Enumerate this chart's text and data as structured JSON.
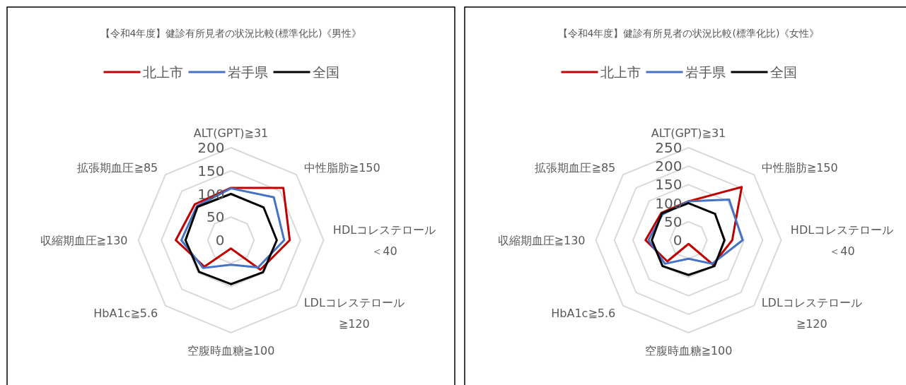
{
  "chart_data": [
    {
      "type": "radar",
      "title": "【令和4年度】健診有所見者の状況比較(標準化比)《男性》",
      "categories": [
        "ALT(GPT)≧31",
        "中性脂肪≧150",
        "HDLコレステロール＜40",
        "LDLコレステロール≧120",
        "空腹時血糖≧100",
        "HbA1c≧5.6",
        "収縮期血圧≧130",
        "拡張期血圧≧85"
      ],
      "ylim": [
        0,
        200
      ],
      "yticks": [
        0,
        50,
        100,
        150,
        200
      ],
      "grid": true,
      "legend": "top",
      "series": [
        {
          "name": "北上市",
          "color": "#c00000",
          "values": [
            113,
            160,
            127,
            90,
            18,
            81,
            119,
            110
          ]
        },
        {
          "name": "岩手県",
          "color": "#4472c4",
          "values": [
            112,
            131,
            115,
            83,
            53,
            85,
            107,
            104
          ]
        },
        {
          "name": "全国",
          "color": "#000000",
          "values": [
            100,
            100,
            99,
            98,
            95,
            97,
            98,
            102
          ]
        }
      ]
    },
    {
      "type": "radar",
      "title": "【令和4年度】健診有所見者の状況比較(標準化比)《女性》",
      "categories": [
        "ALT(GPT)≧31",
        "中性脂肪≧150",
        "HDLコレステロール＜40",
        "LDLコレステロール≧120",
        "空腹時血糖≧100",
        "HbA1c≧5.6",
        "収縮期血圧≧130",
        "拡張期血圧≧85"
      ],
      "ylim": [
        0,
        250
      ],
      "yticks": [
        0,
        50,
        100,
        150,
        200,
        250
      ],
      "grid": true,
      "legend": "top",
      "series": [
        {
          "name": "北上市",
          "color": "#c00000",
          "values": [
            105,
            203,
            118,
            93,
            10,
            81,
            116,
            104
          ]
        },
        {
          "name": "岩手県",
          "color": "#4472c4",
          "values": [
            105,
            155,
            146,
            90,
            50,
            90,
            108,
            99
          ]
        },
        {
          "name": "全国",
          "color": "#000000",
          "values": [
            100,
            101,
            97,
            99,
            94,
            99,
            99,
            102
          ]
        }
      ]
    }
  ]
}
